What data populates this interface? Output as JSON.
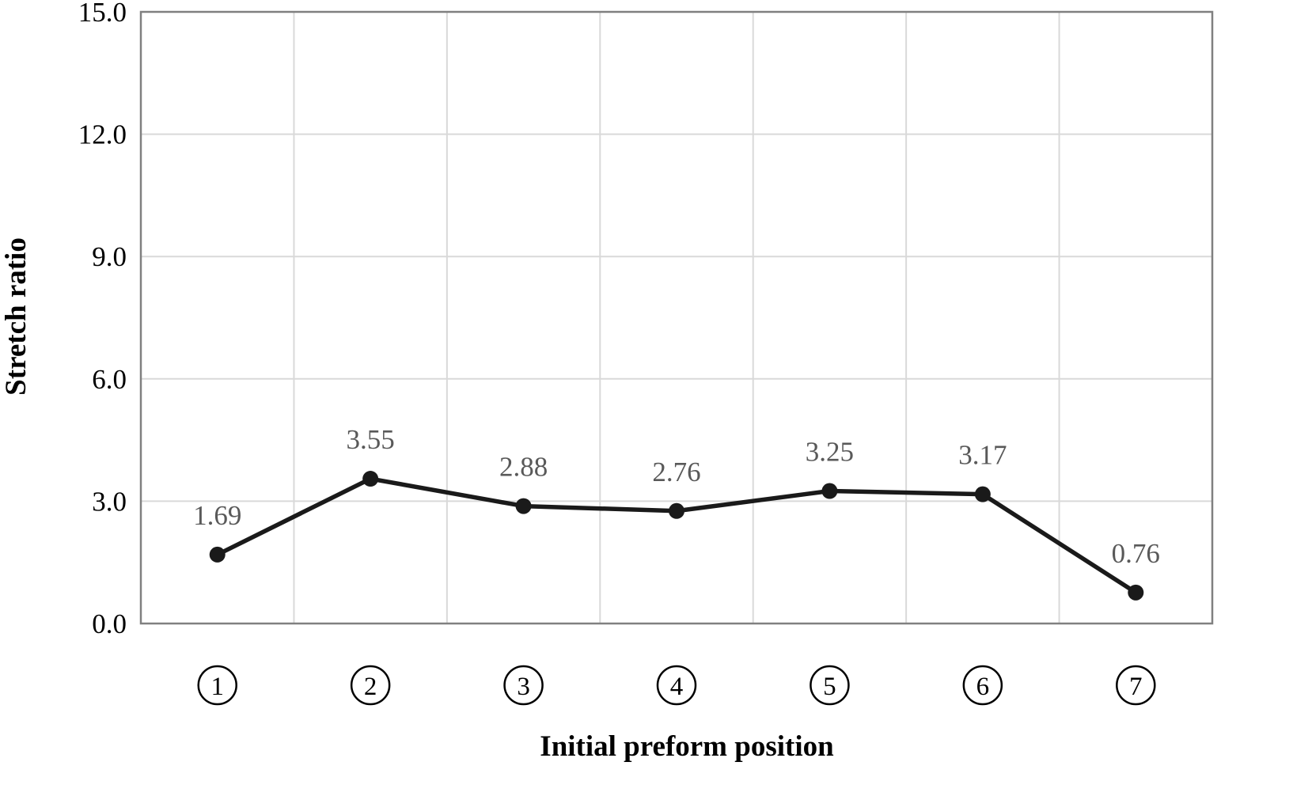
{
  "figure": {
    "background": "#ffffff"
  },
  "chart_data": {
    "type": "line",
    "title": "",
    "xlabel": "Initial preform position",
    "ylabel": "Stretch ratio",
    "categories": [
      "1",
      "2",
      "3",
      "4",
      "5",
      "6",
      "7"
    ],
    "category_style": "circled-number",
    "values": [
      1.69,
      3.55,
      2.88,
      2.76,
      3.25,
      3.17,
      0.76
    ],
    "point_labels": [
      "1.69",
      "3.55",
      "2.88",
      "2.76",
      "3.25",
      "3.17",
      "0.76"
    ],
    "ylim": [
      0,
      15
    ],
    "ytick_labels": [
      "0.0",
      "3.0",
      "6.0",
      "9.0",
      "12.0",
      "15.0"
    ],
    "ytick_values": [
      0,
      3,
      6,
      9,
      12,
      15
    ],
    "grid": "both",
    "legend": "none",
    "colors": {
      "line": "#1a1a1a",
      "marker": "#1a1a1a",
      "data_label": "#595959",
      "grid": "#d9d9d9",
      "frame": "#808080",
      "tick_label": "#000000",
      "axis_title": "#000000"
    }
  }
}
